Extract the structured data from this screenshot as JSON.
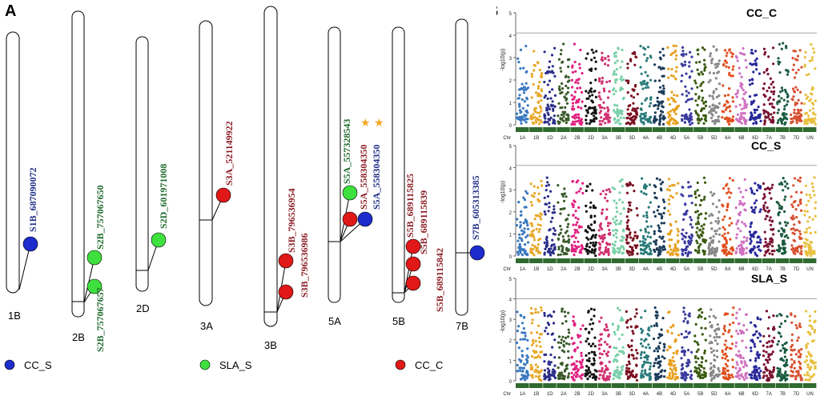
{
  "panel_labels": {
    "a": "A",
    "b": "B"
  },
  "colors": {
    "cc_s": "#1d2ccc",
    "sla_s": "#3ee03e",
    "cc_c": "#e01818",
    "label_cc_s": "#1f2e86",
    "label_sla_s": "#1e6a2c",
    "label_cc_c": "#8a1c24",
    "star": "#f5a623",
    "threshold": "#999999"
  },
  "legend": [
    {
      "key": "cc_s",
      "label": "CC_S"
    },
    {
      "key": "sla_s",
      "label": "SLA_S"
    },
    {
      "key": "cc_c",
      "label": "CC_C"
    }
  ],
  "chart_data": [
    {
      "type": "chromosome_map",
      "title": "",
      "chromosomes": [
        {
          "name": "1B",
          "markers": [
            {
              "id": "S1B_687090072",
              "trait": "cc_s"
            }
          ]
        },
        {
          "name": "2B",
          "markers": [
            {
              "id": "S2B_757067650",
              "trait": "sla_s"
            },
            {
              "id": "S2B_757067657",
              "trait": "sla_s"
            }
          ]
        },
        {
          "name": "2D",
          "markers": [
            {
              "id": "S2D_601971008",
              "trait": "sla_s"
            }
          ]
        },
        {
          "name": "3A",
          "markers": [
            {
              "id": "S3A_521149922",
              "trait": "cc_c"
            }
          ]
        },
        {
          "name": "3B",
          "markers": [
            {
              "id": "S3B_796536954",
              "trait": "cc_c"
            },
            {
              "id": "S3B_796536986",
              "trait": "cc_c"
            }
          ]
        },
        {
          "name": "5A",
          "markers": [
            {
              "id": "S5A_557328543",
              "trait": "sla_s"
            },
            {
              "id": "S5A_558304350",
              "trait": "cc_c",
              "star": true
            },
            {
              "id": "S5A_558304350",
              "trait": "cc_s",
              "star": true
            }
          ]
        },
        {
          "name": "5B",
          "markers": [
            {
              "id": "S5B_689115825",
              "trait": "cc_c"
            },
            {
              "id": "S5B_689115839",
              "trait": "cc_c"
            },
            {
              "id": "S5B_689115842",
              "trait": "cc_c"
            }
          ]
        },
        {
          "name": "7B",
          "markers": [
            {
              "id": "S7B_605313385",
              "trait": "cc_s"
            }
          ]
        }
      ]
    },
    {
      "type": "scatter",
      "subtype": "manhattan",
      "ylabel": "-log10(p)",
      "xlabel": "Chr",
      "chromosomes": [
        "1A",
        "1B",
        "1D",
        "2A",
        "2B",
        "2D",
        "3A",
        "3B",
        "3D",
        "4A",
        "4B",
        "4D",
        "5A",
        "5B",
        "5D",
        "6A",
        "6B",
        "6D",
        "7A",
        "7B",
        "7D",
        "UN"
      ],
      "colors": [
        "#3a78c0",
        "#e8a82a",
        "#2b2e8a",
        "#3a5a2a",
        "#e02080",
        "#111111",
        "#d03070",
        "#7ad0a8",
        "#7a1020",
        "#2a7a7a",
        "#1a3a5a",
        "#e8a020",
        "#3a3aa0",
        "#3a5a10",
        "#888888",
        "#e05020",
        "#d070c0",
        "#28289a",
        "#7a1030",
        "#1a5a40",
        "#d85030",
        "#e8c040"
      ],
      "panels": [
        {
          "title": "CC_C",
          "ylim": [
            0,
            5
          ],
          "yticks": [
            0,
            1,
            2,
            3,
            4,
            5
          ],
          "threshold": 4.1
        },
        {
          "title": "CC_S",
          "ylim": [
            0,
            5
          ],
          "yticks": [
            0,
            1,
            2,
            3,
            4,
            5
          ],
          "threshold": 4.1
        },
        {
          "title": "SLA_S",
          "ylim": [
            0,
            5
          ],
          "yticks": [
            0,
            1,
            2,
            3,
            4,
            5
          ],
          "threshold": 4.0
        }
      ]
    }
  ]
}
